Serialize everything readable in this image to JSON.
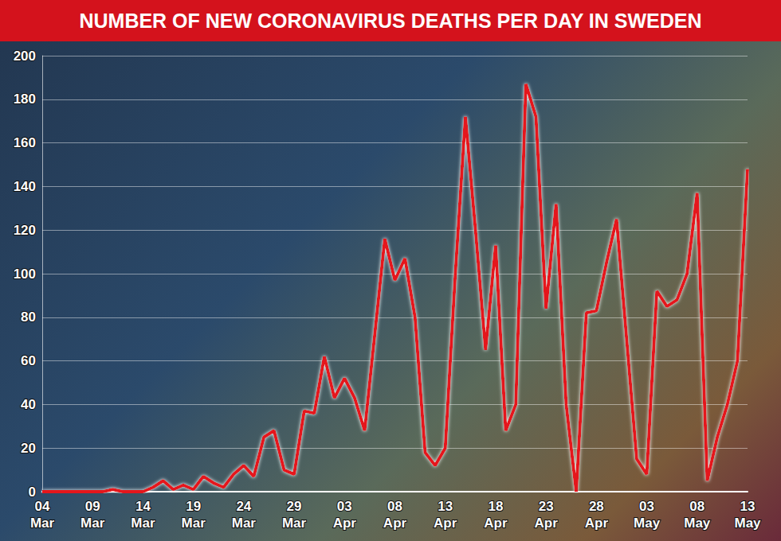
{
  "chart_data": {
    "type": "line",
    "title": "NUMBER OF NEW CORONAVIRUS DEATHS PER DAY IN SWEDEN",
    "categories": [
      "04 Mar",
      null,
      null,
      null,
      null,
      "09 Mar",
      null,
      null,
      null,
      null,
      "14 Mar",
      null,
      null,
      null,
      null,
      "19 Mar",
      null,
      null,
      null,
      null,
      "24 Mar",
      null,
      null,
      null,
      null,
      "29 Mar",
      null,
      null,
      null,
      null,
      "03 Apr",
      null,
      null,
      null,
      null,
      "08 Apr",
      null,
      null,
      null,
      null,
      "13 Apr",
      null,
      null,
      null,
      null,
      "18 Apr",
      null,
      null,
      null,
      null,
      "23 Apr",
      null,
      null,
      null,
      null,
      "28 Apr",
      null,
      null,
      null,
      null,
      "03 May",
      null,
      null,
      null,
      null,
      "08 May",
      null,
      null,
      null,
      null,
      "13 May"
    ],
    "values": [
      0,
      0,
      0,
      0,
      0,
      0,
      0,
      1,
      0,
      0,
      0,
      2,
      5,
      1,
      3,
      1,
      7,
      4,
      2,
      8,
      12,
      7,
      25,
      28,
      10,
      8,
      37,
      36,
      62,
      43,
      52,
      43,
      28,
      72,
      116,
      97,
      107,
      80,
      18,
      12,
      20,
      100,
      172,
      120,
      65,
      113,
      28,
      40,
      187,
      172,
      84,
      132,
      40,
      0,
      82,
      83,
      105,
      125,
      70,
      15,
      8,
      92,
      85,
      88,
      100,
      137,
      5,
      25,
      40,
      60,
      148
    ],
    "color": "#e5121b",
    "ylim": [
      0,
      200
    ],
    "yticks": [
      0,
      20,
      40,
      60,
      80,
      100,
      120,
      140,
      160,
      180,
      200
    ],
    "grid": true
  }
}
